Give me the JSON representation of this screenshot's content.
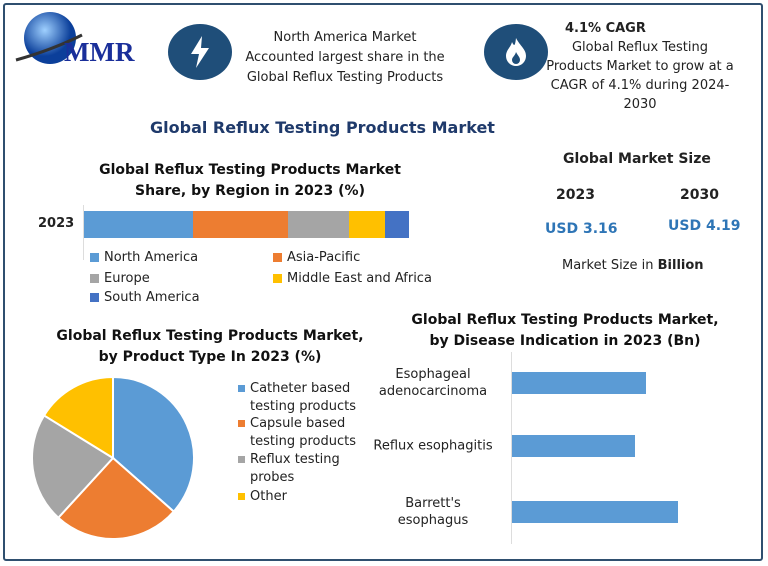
{
  "logo": {
    "text": "MMR"
  },
  "info1": {
    "icon": "lightning-icon",
    "text": "North America Market Accounted largest share in the Global Reflux Testing Products"
  },
  "info2": {
    "icon": "flame-icon",
    "heading": "4.1% CAGR",
    "text": "Global Reflux Testing Products Market to grow at a CAGR of 4.1% during 2024-2030"
  },
  "main_title": "Global Reflux Testing Products Market",
  "market_size": {
    "title": "Global Market Size",
    "year1": "2023",
    "year2": "2030",
    "value1": "USD 3.16",
    "value2": "USD 4.19",
    "note_prefix": "Market Size in ",
    "note_bold": "Billion"
  },
  "chart_data": [
    {
      "type": "bar",
      "orientation": "horizontal",
      "stacked": true,
      "title": "Global Reflux Testing Products Market Share, by Region in 2023 (%)",
      "categories": [
        "2023"
      ],
      "series": [
        {
          "name": "North America",
          "values": [
            33.5
          ],
          "color": "#5b9bd5"
        },
        {
          "name": "Asia-Pacific",
          "values": [
            29.2
          ],
          "color": "#ed7d31"
        },
        {
          "name": "Europe",
          "values": [
            18.8
          ],
          "color": "#a5a5a5"
        },
        {
          "name": "Middle East and Africa",
          "values": [
            11.1
          ],
          "color": "#ffc000"
        },
        {
          "name": "South America",
          "values": [
            7.4
          ],
          "color": "#4472c4"
        }
      ],
      "legend": "bottom"
    },
    {
      "type": "pie",
      "title": "Global Reflux Testing Products Market, by Product Type In 2023 (%)",
      "labels": [
        "Catheter based testing products",
        "Capsule based testing products",
        "Reflux testing probes",
        "Other"
      ],
      "values": [
        36.5,
        25.3,
        22.0,
        16.2
      ],
      "colors": [
        "#5b9bd5",
        "#ed7d31",
        "#a5a5a5",
        "#ffc000"
      ],
      "legend": "right"
    },
    {
      "type": "bar",
      "orientation": "horizontal",
      "title": "Global Reflux Testing Products Market, by Disease Indication in 2023 (Bn)",
      "categories": [
        "Esophageal adenocarcinoma",
        "Reflux esophagitis",
        "Barrett's esophagus"
      ],
      "values": [
        0.81,
        0.74,
        1.0
      ],
      "color": "#5b9bd5",
      "grid": false
    }
  ]
}
